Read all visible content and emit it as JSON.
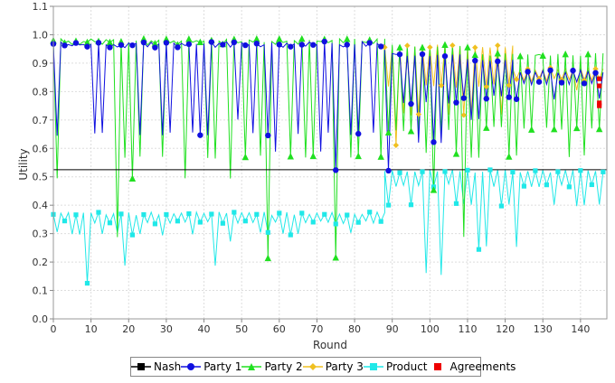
{
  "chart_data": {
    "type": "line",
    "xlabel": "Round",
    "ylabel": "Utility",
    "xlim": [
      0,
      147
    ],
    "ylim": [
      0.0,
      1.1
    ],
    "x_ticks": [
      "0",
      "10",
      "20",
      "30",
      "40",
      "50",
      "60",
      "70",
      "80",
      "90",
      "100",
      "110",
      "120",
      "130",
      "140"
    ],
    "y_ticks": [
      "0.0",
      "0.1",
      "0.2",
      "0.3",
      "0.4",
      "0.5",
      "0.6",
      "0.7",
      "0.8",
      "0.9",
      "1.0",
      "1.1"
    ],
    "grid": true,
    "legend_position": "bottom",
    "series": [
      {
        "name": "Nash",
        "color": "#000000",
        "marker": "square",
        "style": "hline",
        "y": 0.525
      },
      {
        "name": "Party 1",
        "color": "#1010e0",
        "marker": "circle",
        "phases": [
          {
            "x_from": 0,
            "x_to": 88,
            "levels": [
              0.97,
              0.96,
              0.65,
              0.59,
              0.52,
              0.7
            ]
          },
          {
            "x_from": 88,
            "x_to": 108,
            "levels": [
              0.93,
              0.76,
              0.62,
              0.52
            ]
          },
          {
            "x_from": 108,
            "x_to": 122,
            "levels": [
              0.91,
              0.78,
              0.7
            ]
          },
          {
            "x_from": 122,
            "x_to": 146,
            "levels": [
              0.87,
              0.83,
              0.77,
              0.73
            ]
          }
        ]
      },
      {
        "name": "Party 2",
        "color": "#20e020",
        "marker": "triangle",
        "phases": [
          {
            "x_from": 0,
            "x_to": 88,
            "levels": [
              0.98,
              0.97,
              0.57,
              0.49,
              0.29,
              0.21
            ]
          },
          {
            "x_from": 88,
            "x_to": 110,
            "levels": [
              0.96,
              0.66,
              0.58,
              0.45,
              0.29
            ]
          },
          {
            "x_from": 110,
            "x_to": 146,
            "levels": [
              0.93,
              0.67,
              0.57,
              0.31,
              0.22
            ]
          }
        ]
      },
      {
        "name": "Party 3",
        "color": "#f0c020",
        "marker": "diamond",
        "phases": [
          {
            "x_from": 88,
            "x_to": 122,
            "levels": [
              0.96,
              0.82,
              0.72,
              0.61
            ]
          },
          {
            "x_from": 122,
            "x_to": 146,
            "levels": [
              0.88,
              0.84,
              0.8,
              0.73
            ]
          }
        ]
      },
      {
        "name": "Product",
        "color": "#20e8e8",
        "marker": "square",
        "phases": [
          {
            "x_from": 0,
            "x_to": 88,
            "levels": [
              0.37,
              0.34,
              0.3,
              0.27,
              0.19,
              0.13
            ]
          },
          {
            "x_from": 88,
            "x_to": 146,
            "levels": [
              0.52,
              0.47,
              0.4,
              0.36,
              0.25,
              0.16
            ]
          }
        ]
      },
      {
        "name": "Agreements",
        "color": "#ee0000",
        "marker": "square",
        "points": [
          [
            145,
            0.845
          ],
          [
            145,
            0.82
          ],
          [
            145,
            0.76
          ],
          [
            145,
            0.75
          ]
        ]
      }
    ]
  }
}
